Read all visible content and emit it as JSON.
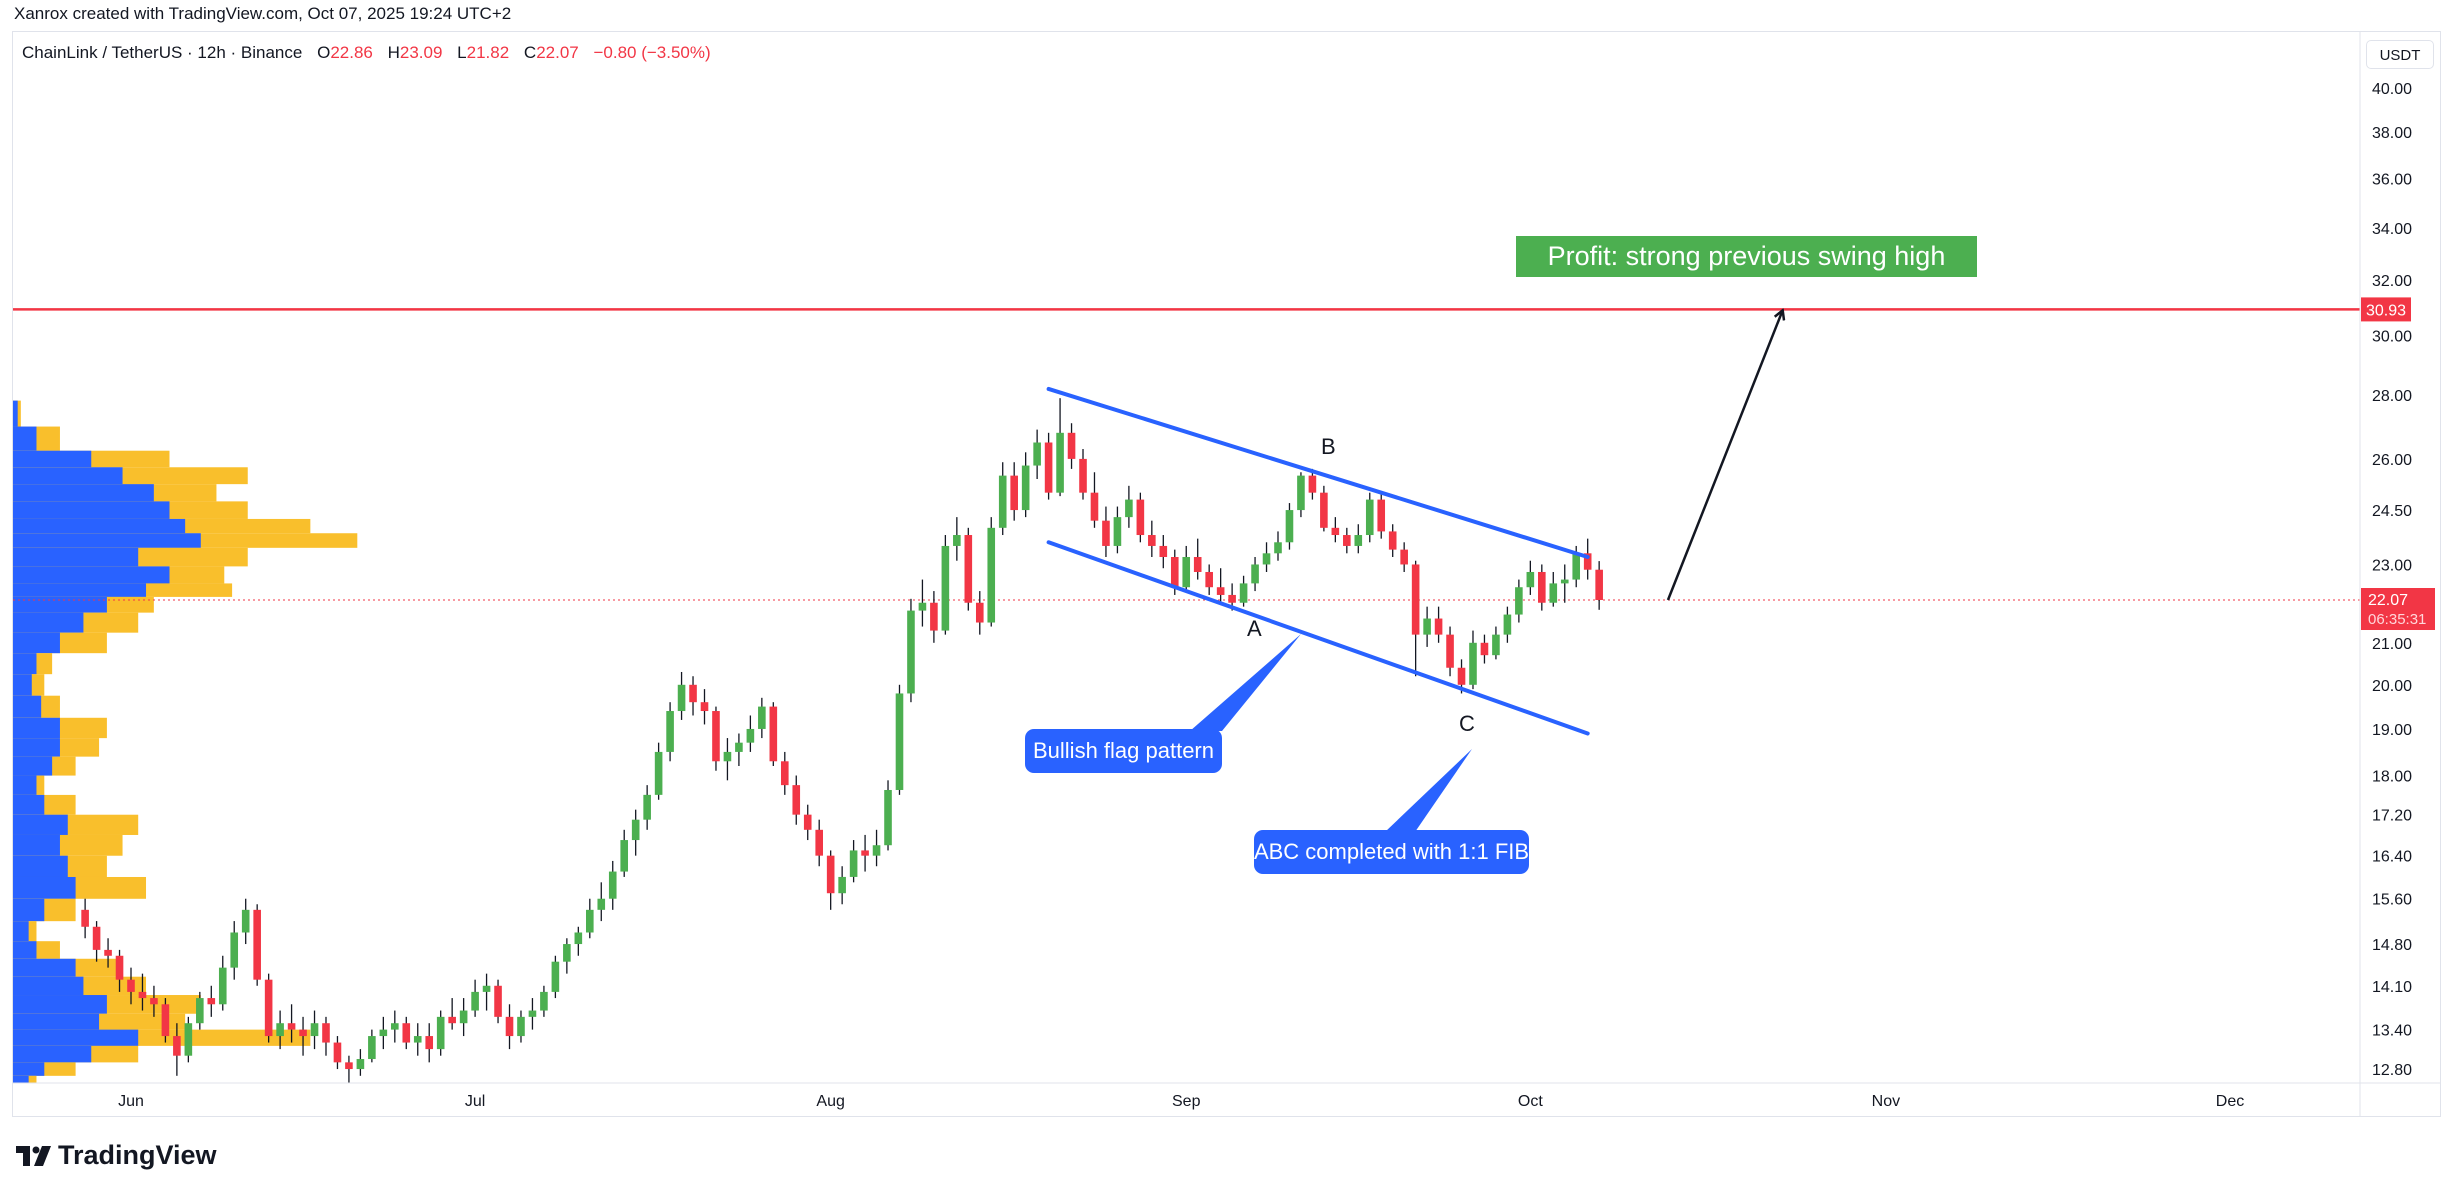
{
  "credit": "Xanrox created with TradingView.com, Oct 07, 2025 19:24 UTC+2",
  "legend": {
    "symbol": "ChainLink / TetherUS · 12h · Binance",
    "open_label": "O",
    "open": "22.86",
    "high_label": "H",
    "high": "23.09",
    "low_label": "L",
    "low": "21.82",
    "close_label": "C",
    "close": "22.07",
    "change": "−0.80 (−3.50%)"
  },
  "currency_button": "USDT",
  "logo_text": "TradingView",
  "colors": {
    "up": "#4caf50",
    "down": "#f23645",
    "channel": "#2962ff",
    "profile_up": "#2962ff",
    "profile_total": "#f9bf2c",
    "target_line": "#f23645",
    "profit_bg": "#4caf50"
  },
  "chart_data": {
    "type": "candlestick",
    "scale": "log",
    "ylim": [
      12.5,
      41
    ],
    "y_ticks": [
      "40.00",
      "38.00",
      "36.00",
      "34.00",
      "32.00",
      "30.00",
      "28.00",
      "26.00",
      "24.50",
      "23.00",
      "21.00",
      "20.00",
      "19.00",
      "18.00",
      "17.20",
      "16.40",
      "15.60",
      "14.80",
      "14.10",
      "13.40",
      "12.80"
    ],
    "x_ticks": [
      [
        "2025-06-01",
        "Jun"
      ],
      [
        "2025-07-01",
        "Jul"
      ],
      [
        "2025-08-01",
        "Aug"
      ],
      [
        "2025-09-01",
        "Sep"
      ],
      [
        "2025-10-01",
        "Oct"
      ],
      [
        "2025-11-01",
        "Nov"
      ],
      [
        "2025-12-01",
        "Dec"
      ]
    ],
    "current_price": {
      "value": 22.07,
      "label": "22.07",
      "countdown": "06:35:31"
    },
    "target": {
      "value": 30.93,
      "label": "30.93"
    },
    "candles": [
      [
        "2025-05-28",
        15.4,
        15.6,
        14.9,
        15.1
      ],
      [
        "2025-05-29",
        15.1,
        15.2,
        14.5,
        14.7
      ],
      [
        "2025-05-30",
        14.7,
        14.9,
        14.4,
        14.6
      ],
      [
        "2025-05-31",
        14.6,
        14.7,
        14.0,
        14.2
      ],
      [
        "2025-06-01",
        14.2,
        14.4,
        13.8,
        14.0
      ],
      [
        "2025-06-02",
        14.0,
        14.3,
        13.7,
        13.9
      ],
      [
        "2025-06-03",
        13.9,
        14.1,
        13.6,
        13.8
      ],
      [
        "2025-06-04",
        13.8,
        13.9,
        13.2,
        13.3
      ],
      [
        "2025-06-05",
        13.3,
        13.5,
        12.7,
        13.0
      ],
      [
        "2025-06-06",
        13.0,
        13.6,
        12.9,
        13.5
      ],
      [
        "2025-06-07",
        13.5,
        14.0,
        13.4,
        13.9
      ],
      [
        "2025-06-08",
        13.9,
        14.1,
        13.6,
        13.8
      ],
      [
        "2025-06-09",
        13.8,
        14.6,
        13.7,
        14.4
      ],
      [
        "2025-06-10",
        14.4,
        15.2,
        14.2,
        15.0
      ],
      [
        "2025-06-11",
        15.0,
        15.6,
        14.8,
        15.4
      ],
      [
        "2025-06-12",
        15.4,
        15.5,
        14.1,
        14.2
      ],
      [
        "2025-06-13",
        14.2,
        14.3,
        13.2,
        13.3
      ],
      [
        "2025-06-14",
        13.3,
        13.7,
        13.1,
        13.5
      ],
      [
        "2025-06-15",
        13.5,
        13.8,
        13.2,
        13.4
      ],
      [
        "2025-06-16",
        13.4,
        13.6,
        13.0,
        13.3
      ],
      [
        "2025-06-17",
        13.3,
        13.7,
        13.1,
        13.5
      ],
      [
        "2025-06-18",
        13.5,
        13.6,
        13.0,
        13.2
      ],
      [
        "2025-06-19",
        13.2,
        13.3,
        12.8,
        12.9
      ],
      [
        "2025-06-20",
        12.9,
        13.0,
        12.6,
        12.8
      ],
      [
        "2025-06-21",
        12.8,
        13.1,
        12.7,
        12.95
      ],
      [
        "2025-06-22",
        12.95,
        13.4,
        12.9,
        13.3
      ],
      [
        "2025-06-23",
        13.3,
        13.6,
        13.1,
        13.4
      ],
      [
        "2025-06-24",
        13.4,
        13.7,
        13.2,
        13.5
      ],
      [
        "2025-06-25",
        13.5,
        13.6,
        13.1,
        13.2
      ],
      [
        "2025-06-26",
        13.2,
        13.5,
        13.0,
        13.3
      ],
      [
        "2025-06-27",
        13.3,
        13.5,
        12.9,
        13.1
      ],
      [
        "2025-06-28",
        13.1,
        13.7,
        13.0,
        13.6
      ],
      [
        "2025-06-29",
        13.6,
        13.9,
        13.4,
        13.5
      ],
      [
        "2025-06-30",
        13.5,
        13.9,
        13.3,
        13.7
      ],
      [
        "2025-07-01",
        13.7,
        14.2,
        13.6,
        14.0
      ],
      [
        "2025-07-02",
        14.0,
        14.3,
        13.7,
        14.1
      ],
      [
        "2025-07-03",
        14.1,
        14.2,
        13.5,
        13.6
      ],
      [
        "2025-07-04",
        13.6,
        13.8,
        13.1,
        13.3
      ],
      [
        "2025-07-05",
        13.3,
        13.7,
        13.2,
        13.6
      ],
      [
        "2025-07-06",
        13.6,
        13.9,
        13.4,
        13.7
      ],
      [
        "2025-07-07",
        13.7,
        14.1,
        13.6,
        14.0
      ],
      [
        "2025-07-08",
        14.0,
        14.6,
        13.9,
        14.5
      ],
      [
        "2025-07-09",
        14.5,
        14.9,
        14.3,
        14.8
      ],
      [
        "2025-07-10",
        14.8,
        15.1,
        14.6,
        15.0
      ],
      [
        "2025-07-11",
        15.0,
        15.6,
        14.9,
        15.4
      ],
      [
        "2025-07-12",
        15.4,
        15.9,
        15.2,
        15.6
      ],
      [
        "2025-07-13",
        15.6,
        16.3,
        15.4,
        16.1
      ],
      [
        "2025-07-14",
        16.1,
        16.9,
        16.0,
        16.7
      ],
      [
        "2025-07-15",
        16.7,
        17.3,
        16.4,
        17.1
      ],
      [
        "2025-07-16",
        17.1,
        17.8,
        16.9,
        17.6
      ],
      [
        "2025-07-17",
        17.6,
        18.7,
        17.5,
        18.5
      ],
      [
        "2025-07-18",
        18.5,
        19.6,
        18.3,
        19.4
      ],
      [
        "2025-07-19",
        19.4,
        20.3,
        19.2,
        20.0
      ],
      [
        "2025-07-20",
        20.0,
        20.2,
        19.3,
        19.6
      ],
      [
        "2025-07-21",
        19.6,
        19.9,
        19.1,
        19.4
      ],
      [
        "2025-07-22",
        19.4,
        19.5,
        18.1,
        18.3
      ],
      [
        "2025-07-23",
        18.3,
        18.8,
        17.9,
        18.5
      ],
      [
        "2025-07-24",
        18.5,
        18.9,
        18.2,
        18.7
      ],
      [
        "2025-07-25",
        18.7,
        19.3,
        18.5,
        19.0
      ],
      [
        "2025-07-26",
        19.0,
        19.7,
        18.8,
        19.5
      ],
      [
        "2025-07-27",
        19.5,
        19.6,
        18.2,
        18.3
      ],
      [
        "2025-07-28",
        18.3,
        18.5,
        17.6,
        17.8
      ],
      [
        "2025-07-29",
        17.8,
        18.0,
        17.0,
        17.2
      ],
      [
        "2025-07-30",
        17.2,
        17.4,
        16.7,
        16.9
      ],
      [
        "2025-07-31",
        16.9,
        17.1,
        16.2,
        16.4
      ],
      [
        "2025-08-01",
        16.4,
        16.5,
        15.4,
        15.7
      ],
      [
        "2025-08-02",
        15.7,
        16.2,
        15.5,
        16.0
      ],
      [
        "2025-08-03",
        16.0,
        16.7,
        15.9,
        16.5
      ],
      [
        "2025-08-04",
        16.5,
        16.8,
        16.1,
        16.4
      ],
      [
        "2025-08-05",
        16.4,
        16.9,
        16.2,
        16.6
      ],
      [
        "2025-08-06",
        16.6,
        17.9,
        16.5,
        17.7
      ],
      [
        "2025-08-07",
        17.7,
        20.0,
        17.6,
        19.8
      ],
      [
        "2025-08-08",
        19.8,
        22.1,
        19.6,
        21.8
      ],
      [
        "2025-08-09",
        21.8,
        22.6,
        21.4,
        22.0
      ],
      [
        "2025-08-10",
        22.0,
        22.3,
        21.0,
        21.3
      ],
      [
        "2025-08-11",
        21.3,
        23.8,
        21.2,
        23.5
      ],
      [
        "2025-08-12",
        23.5,
        24.3,
        23.1,
        23.8
      ],
      [
        "2025-08-13",
        23.8,
        24.0,
        21.8,
        22.0
      ],
      [
        "2025-08-14",
        22.0,
        22.3,
        21.2,
        21.5
      ],
      [
        "2025-08-15",
        21.5,
        24.3,
        21.4,
        24.0
      ],
      [
        "2025-08-16",
        24.0,
        25.9,
        23.8,
        25.5
      ],
      [
        "2025-08-17",
        25.5,
        25.9,
        24.2,
        24.5
      ],
      [
        "2025-08-18",
        24.5,
        26.2,
        24.3,
        25.8
      ],
      [
        "2025-08-19",
        25.8,
        26.9,
        25.4,
        26.5
      ],
      [
        "2025-08-20",
        26.5,
        26.8,
        24.8,
        25.0
      ],
      [
        "2025-08-21",
        25.0,
        27.9,
        24.9,
        26.8
      ],
      [
        "2025-08-22",
        26.8,
        27.1,
        25.7,
        26.0
      ],
      [
        "2025-08-23",
        26.0,
        26.3,
        24.8,
        25.0
      ],
      [
        "2025-08-24",
        25.0,
        25.6,
        24.0,
        24.2
      ],
      [
        "2025-08-25",
        24.2,
        24.6,
        23.2,
        23.5
      ],
      [
        "2025-08-26",
        23.5,
        24.6,
        23.3,
        24.3
      ],
      [
        "2025-08-27",
        24.3,
        25.2,
        24.0,
        24.8
      ],
      [
        "2025-08-28",
        24.8,
        25.0,
        23.6,
        23.8
      ],
      [
        "2025-08-29",
        23.8,
        24.2,
        23.2,
        23.5
      ],
      [
        "2025-08-30",
        23.5,
        23.8,
        22.9,
        23.2
      ],
      [
        "2025-08-31",
        23.2,
        23.4,
        22.2,
        22.4
      ],
      [
        "2025-09-01",
        22.4,
        23.5,
        22.3,
        23.2
      ],
      [
        "2025-09-02",
        23.2,
        23.7,
        22.6,
        22.8
      ],
      [
        "2025-09-03",
        22.8,
        23.0,
        22.2,
        22.4
      ],
      [
        "2025-09-04",
        22.4,
        22.9,
        22.0,
        22.2
      ],
      [
        "2025-09-05",
        22.2,
        22.5,
        21.8,
        22.0
      ],
      [
        "2025-09-06",
        22.0,
        22.7,
        21.9,
        22.5
      ],
      [
        "2025-09-07",
        22.5,
        23.2,
        22.3,
        23.0
      ],
      [
        "2025-09-08",
        23.0,
        23.6,
        22.8,
        23.3
      ],
      [
        "2025-09-09",
        23.3,
        23.9,
        23.1,
        23.6
      ],
      [
        "2025-09-10",
        23.6,
        24.7,
        23.4,
        24.5
      ],
      [
        "2025-09-11",
        24.5,
        25.6,
        24.3,
        25.5
      ],
      [
        "2025-09-12",
        25.5,
        25.7,
        24.8,
        25.0
      ],
      [
        "2025-09-13",
        25.0,
        25.2,
        23.9,
        24.0
      ],
      [
        "2025-09-14",
        24.0,
        24.3,
        23.6,
        23.8
      ],
      [
        "2025-09-15",
        23.8,
        24.0,
        23.3,
        23.5
      ],
      [
        "2025-09-16",
        23.5,
        24.1,
        23.3,
        23.8
      ],
      [
        "2025-09-17",
        23.8,
        25.0,
        23.6,
        24.8
      ],
      [
        "2025-09-18",
        24.8,
        25.0,
        23.7,
        23.9
      ],
      [
        "2025-09-19",
        23.9,
        24.1,
        23.2,
        23.4
      ],
      [
        "2025-09-20",
        23.4,
        23.6,
        22.8,
        23.0
      ],
      [
        "2025-09-21",
        23.0,
        23.1,
        20.2,
        21.2
      ],
      [
        "2025-09-22",
        21.2,
        21.9,
        20.9,
        21.6
      ],
      [
        "2025-09-23",
        21.6,
        21.9,
        21.0,
        21.2
      ],
      [
        "2025-09-24",
        21.2,
        21.4,
        20.2,
        20.4
      ],
      [
        "2025-09-25",
        20.4,
        20.6,
        19.8,
        20.0
      ],
      [
        "2025-09-26",
        20.0,
        21.3,
        19.9,
        21.0
      ],
      [
        "2025-09-27",
        21.0,
        21.2,
        20.5,
        20.7
      ],
      [
        "2025-09-28",
        20.7,
        21.4,
        20.6,
        21.2
      ],
      [
        "2025-09-29",
        21.2,
        21.9,
        21.0,
        21.7
      ],
      [
        "2025-09-30",
        21.7,
        22.6,
        21.5,
        22.4
      ],
      [
        "2025-10-01",
        22.4,
        23.1,
        22.2,
        22.8
      ],
      [
        "2025-10-02",
        22.8,
        23.0,
        21.8,
        22.0
      ],
      [
        "2025-10-03",
        22.0,
        22.8,
        21.9,
        22.5
      ],
      [
        "2025-10-04",
        22.5,
        23.0,
        22.0,
        22.6
      ],
      [
        "2025-10-05",
        22.6,
        23.5,
        22.4,
        23.3
      ],
      [
        "2025-10-06",
        23.3,
        23.7,
        22.6,
        22.86
      ],
      [
        "2025-10-07",
        22.86,
        23.09,
        21.82,
        22.07
      ]
    ],
    "volume_profile": [
      [
        27.5,
        5,
        3
      ],
      [
        26.5,
        30,
        15
      ],
      [
        26.0,
        100,
        50
      ],
      [
        25.5,
        150,
        70
      ],
      [
        25.0,
        130,
        90
      ],
      [
        24.5,
        150,
        100
      ],
      [
        24.0,
        190,
        110
      ],
      [
        23.7,
        220,
        120
      ],
      [
        23.2,
        150,
        80
      ],
      [
        22.7,
        135,
        100
      ],
      [
        22.3,
        140,
        85
      ],
      [
        22.0,
        90,
        60
      ],
      [
        21.5,
        80,
        45
      ],
      [
        21.0,
        60,
        30
      ],
      [
        20.5,
        25,
        15
      ],
      [
        20.0,
        20,
        12
      ],
      [
        19.5,
        30,
        18
      ],
      [
        19.0,
        60,
        30
      ],
      [
        18.6,
        55,
        30
      ],
      [
        18.2,
        40,
        25
      ],
      [
        17.8,
        20,
        15
      ],
      [
        17.4,
        40,
        20
      ],
      [
        17.0,
        80,
        35
      ],
      [
        16.6,
        70,
        30
      ],
      [
        16.2,
        60,
        35
      ],
      [
        15.8,
        85,
        40
      ],
      [
        15.4,
        40,
        20
      ],
      [
        15.0,
        15,
        10
      ],
      [
        14.7,
        30,
        15
      ],
      [
        14.4,
        70,
        40
      ],
      [
        14.1,
        85,
        45
      ],
      [
        13.8,
        120,
        60
      ],
      [
        13.5,
        110,
        55
      ],
      [
        13.3,
        190,
        80
      ],
      [
        13.0,
        80,
        50
      ],
      [
        12.8,
        40,
        20
      ],
      [
        12.6,
        15,
        10
      ]
    ],
    "drawings": {
      "channel_upper": {
        "from": [
          "2025-08-20",
          28.2
        ],
        "to": [
          "2025-10-06",
          23.2
        ]
      },
      "channel_lower": {
        "from": [
          "2025-08-20",
          23.6
        ],
        "to": [
          "2025-10-06",
          18.9
        ]
      },
      "arrow": {
        "from": [
          "2025-10-13",
          22.07
        ],
        "to": [
          "2025-10-23",
          30.9
        ]
      }
    }
  },
  "annotations": {
    "wave_a": "A",
    "wave_b": "B",
    "wave_c": "C",
    "bullish_flag": "Bullish flag pattern",
    "abc_completed": "ABC completed with 1:1 FIB",
    "profit": "Profit: strong previous swing high"
  }
}
